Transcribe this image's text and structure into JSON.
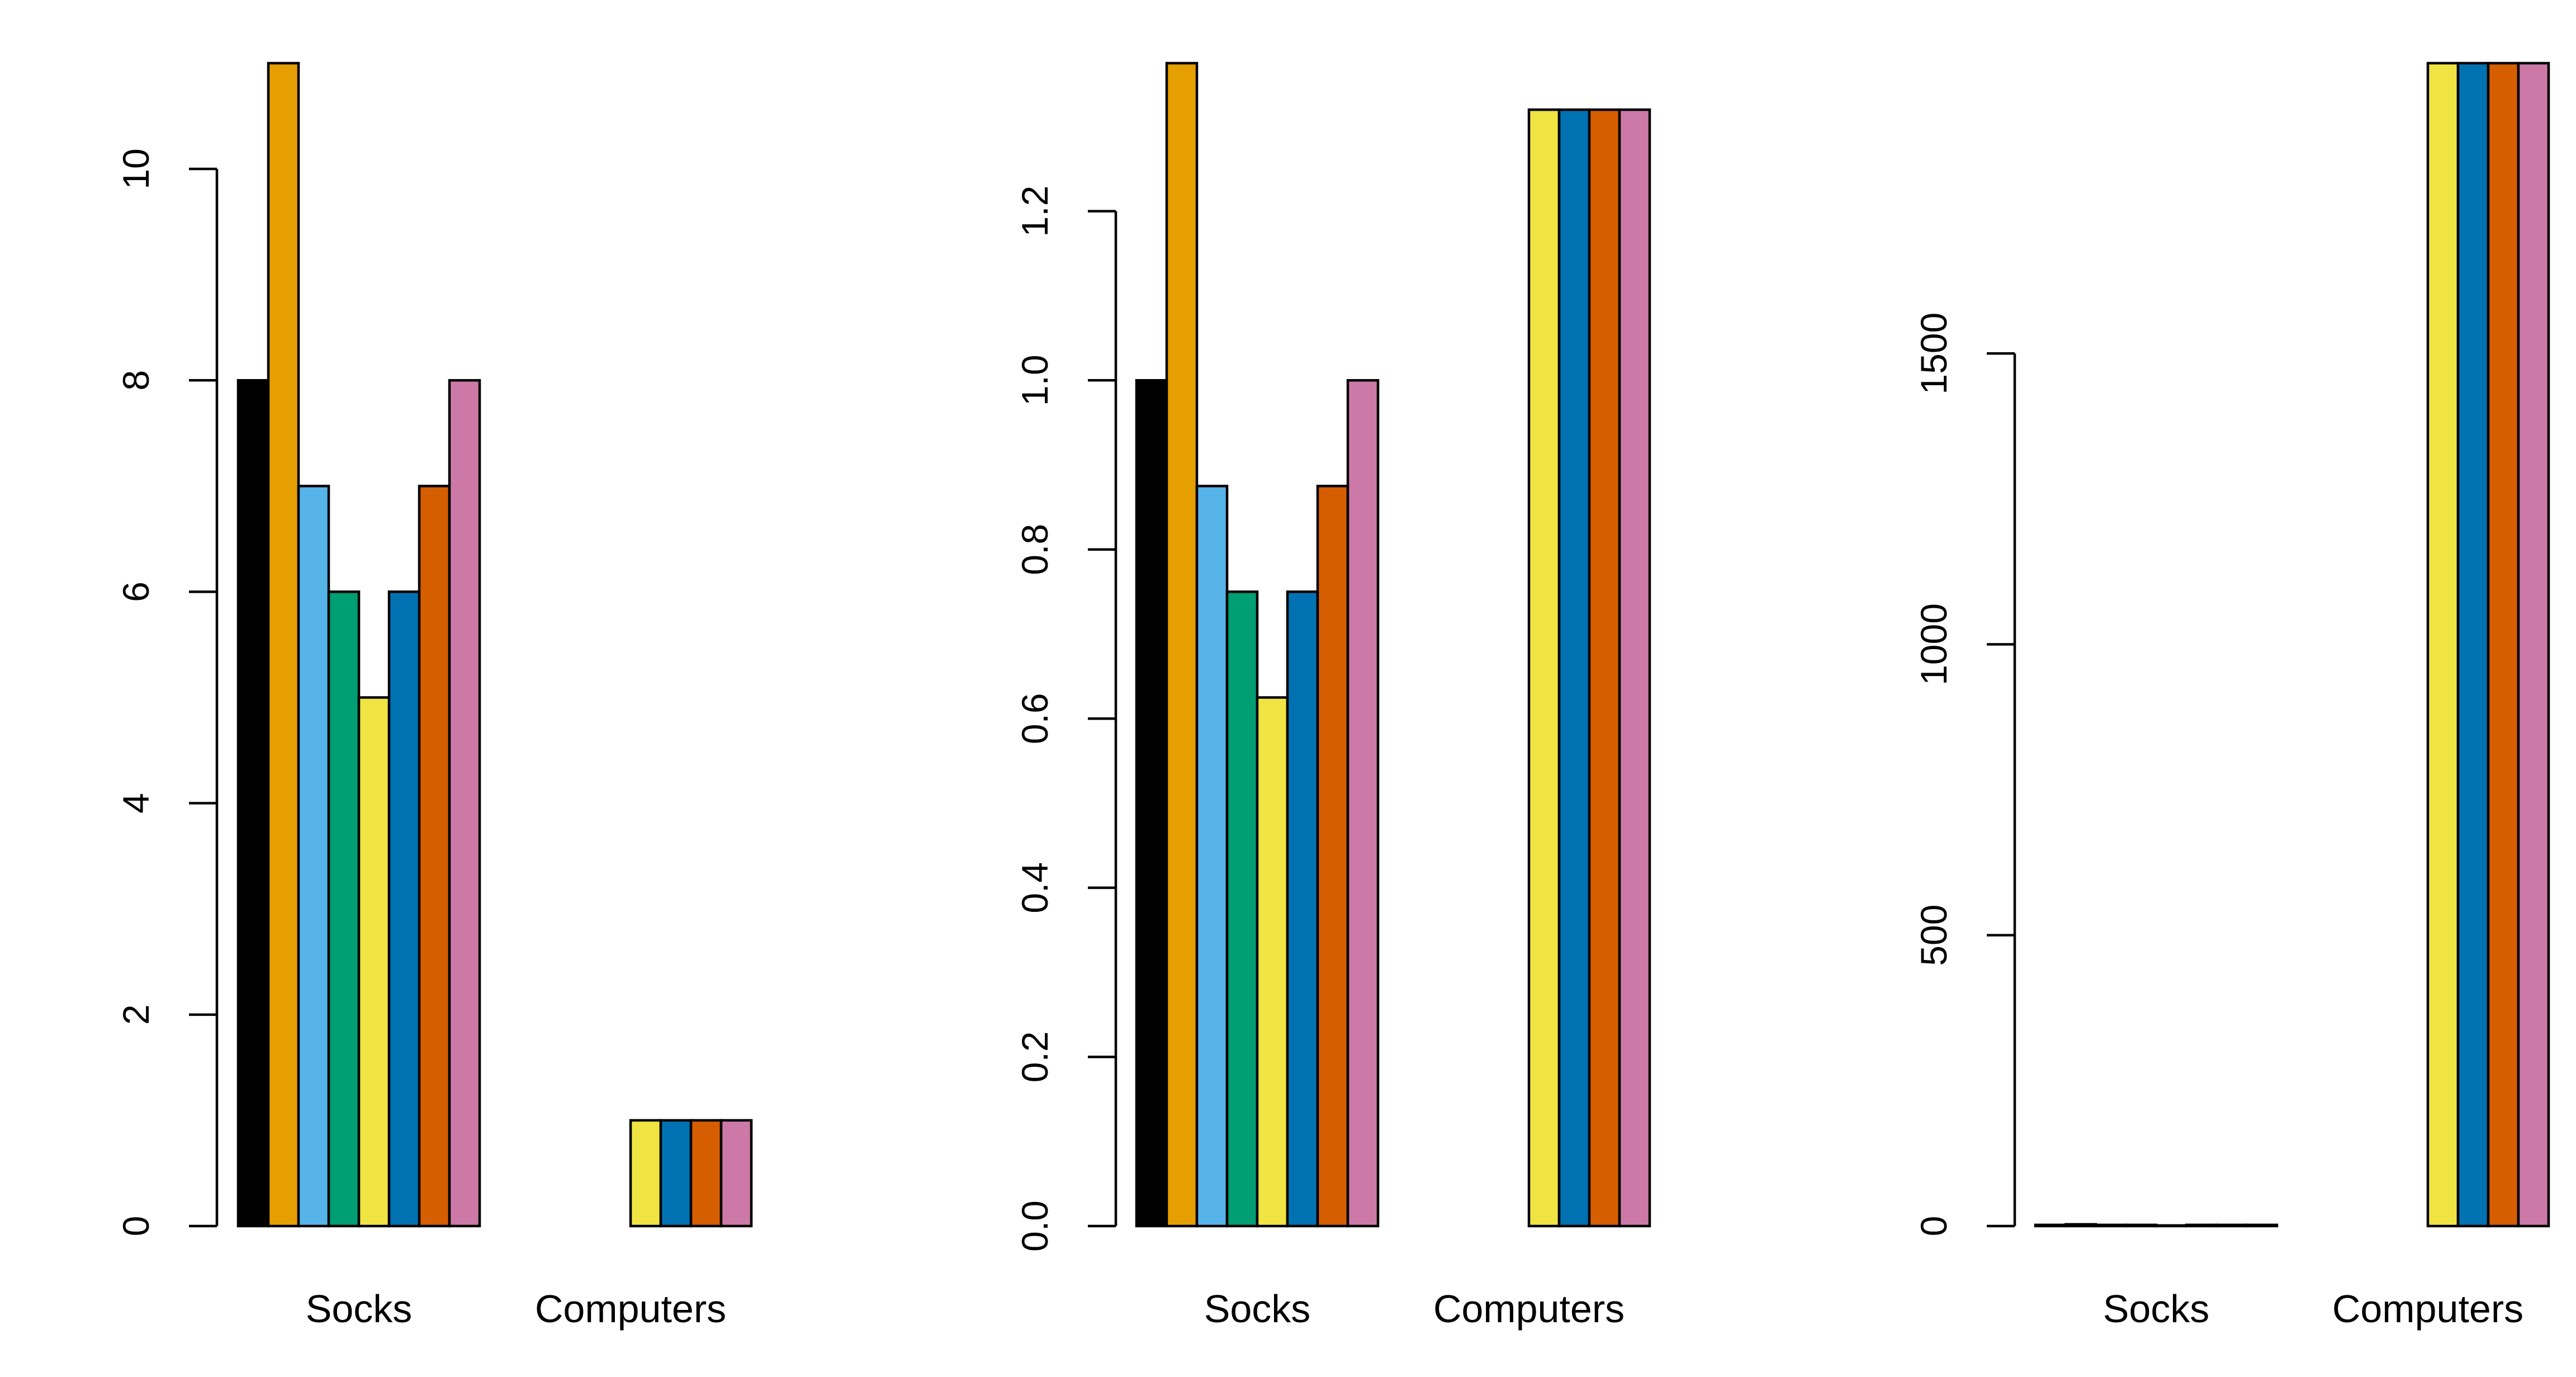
{
  "chart_data": [
    {
      "type": "bar",
      "categories": [
        "Socks",
        "Computers"
      ],
      "series": [
        {
          "color": "#000000",
          "values": [
            8,
            0
          ]
        },
        {
          "color": "#E69F00",
          "values": [
            11,
            0
          ]
        },
        {
          "color": "#56B4E9",
          "values": [
            7,
            0
          ]
        },
        {
          "color": "#009E73",
          "values": [
            6,
            0
          ]
        },
        {
          "color": "#F0E442",
          "values": [
            5,
            1
          ]
        },
        {
          "color": "#0072B2",
          "values": [
            6,
            1
          ]
        },
        {
          "color": "#D55E00",
          "values": [
            7,
            1
          ]
        },
        {
          "color": "#CC79A7",
          "values": [
            8,
            1
          ]
        }
      ],
      "yticks": [
        0,
        2,
        4,
        6,
        8,
        10
      ],
      "ytick_labels": [
        "0",
        "2",
        "4",
        "6",
        "8",
        "10"
      ],
      "ylim": [
        0,
        11
      ],
      "grid": false,
      "legend": "none"
    },
    {
      "type": "bar",
      "categories": [
        "Socks",
        "Computers"
      ],
      "series": [
        {
          "color": "#000000",
          "values": [
            1.0,
            0
          ]
        },
        {
          "color": "#E69F00",
          "values": [
            1.375,
            0
          ]
        },
        {
          "color": "#56B4E9",
          "values": [
            0.875,
            0
          ]
        },
        {
          "color": "#009E73",
          "values": [
            0.75,
            0
          ]
        },
        {
          "color": "#F0E442",
          "values": [
            0.625,
            1.32
          ]
        },
        {
          "color": "#0072B2",
          "values": [
            0.75,
            1.32
          ]
        },
        {
          "color": "#D55E00",
          "values": [
            0.875,
            1.32
          ]
        },
        {
          "color": "#CC79A7",
          "values": [
            1.0,
            1.32
          ]
        }
      ],
      "yticks": [
        0,
        0.2,
        0.4,
        0.6,
        0.8,
        1.0,
        1.2
      ],
      "ytick_labels": [
        "0.0",
        "0.2",
        "0.4",
        "0.6",
        "0.8",
        "1.0",
        "1.2"
      ],
      "ylim": [
        0,
        1.375
      ],
      "grid": false,
      "legend": "none"
    },
    {
      "type": "bar",
      "categories": [
        "Socks",
        "Computers"
      ],
      "series": [
        {
          "color": "#000000",
          "values": [
            2,
            0
          ]
        },
        {
          "color": "#E69F00",
          "values": [
            3,
            0
          ]
        },
        {
          "color": "#56B4E9",
          "values": [
            2,
            0
          ]
        },
        {
          "color": "#009E73",
          "values": [
            2,
            0
          ]
        },
        {
          "color": "#F0E442",
          "values": [
            1,
            1999
          ]
        },
        {
          "color": "#0072B2",
          "values": [
            2,
            1999
          ]
        },
        {
          "color": "#D55E00",
          "values": [
            2,
            1999
          ]
        },
        {
          "color": "#CC79A7",
          "values": [
            2,
            1999
          ]
        }
      ],
      "yticks": [
        0,
        500,
        1000,
        1500
      ],
      "ytick_labels": [
        "0",
        "500",
        "1000",
        "1500"
      ],
      "ylim": [
        0,
        1999
      ],
      "grid": false,
      "legend": "none"
    }
  ]
}
